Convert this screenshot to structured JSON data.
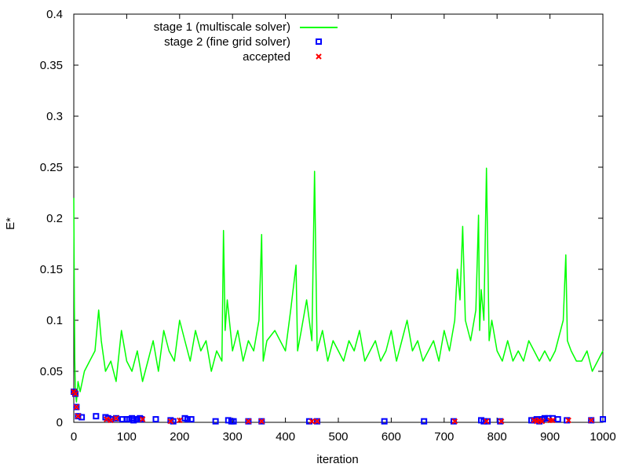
{
  "chart_data": {
    "type": "line",
    "xlabel": "iteration",
    "ylabel": "E*",
    "xlim": [
      0,
      1000
    ],
    "ylim": [
      0,
      0.4
    ],
    "x_ticks": [
      0,
      100,
      200,
      300,
      400,
      500,
      600,
      700,
      800,
      900,
      1000
    ],
    "y_ticks": [
      0,
      0.05,
      0.1,
      0.15,
      0.2,
      0.25,
      0.3,
      0.35,
      0.4
    ],
    "x_tick_labels": [
      "0",
      "100",
      "200",
      "300",
      "400",
      "500",
      "600",
      "700",
      "800",
      "900",
      "1000"
    ],
    "y_tick_labels": [
      "0",
      "0.05",
      "0.1",
      "0.15",
      "0.2",
      "0.25",
      "0.3",
      "0.35",
      "0.4"
    ],
    "grid": false,
    "legend_position": "top-left",
    "series": [
      {
        "name": "stage 1 (multiscale solver)",
        "kind": "line",
        "color": "#00ff00",
        "x": [
          0,
          1,
          2,
          3,
          5,
          8,
          12,
          20,
          30,
          40,
          47,
          52,
          60,
          70,
          80,
          90,
          100,
          110,
          120,
          130,
          140,
          150,
          160,
          170,
          180,
          190,
          200,
          210,
          220,
          230,
          240,
          250,
          260,
          270,
          280,
          283,
          286,
          290,
          300,
          310,
          320,
          330,
          340,
          350,
          355,
          358,
          365,
          380,
          400,
          410,
          420,
          423,
          430,
          440,
          450,
          455,
          460,
          470,
          480,
          490,
          500,
          510,
          520,
          530,
          540,
          550,
          560,
          570,
          580,
          590,
          600,
          610,
          620,
          630,
          640,
          650,
          660,
          670,
          680,
          690,
          700,
          710,
          720,
          725,
          730,
          735,
          740,
          750,
          760,
          765,
          767,
          770,
          775,
          780,
          785,
          790,
          800,
          810,
          820,
          830,
          840,
          850,
          860,
          870,
          880,
          890,
          900,
          910,
          920,
          925,
          930,
          933,
          940,
          950,
          960,
          970,
          980,
          990,
          1000
        ],
        "y": [
          0.22,
          0.12,
          0.06,
          0.03,
          0.02,
          0.04,
          0.03,
          0.05,
          0.06,
          0.07,
          0.11,
          0.08,
          0.05,
          0.06,
          0.04,
          0.09,
          0.06,
          0.05,
          0.07,
          0.04,
          0.06,
          0.08,
          0.05,
          0.09,
          0.07,
          0.06,
          0.1,
          0.08,
          0.06,
          0.09,
          0.07,
          0.08,
          0.05,
          0.07,
          0.06,
          0.188,
          0.09,
          0.12,
          0.07,
          0.09,
          0.06,
          0.08,
          0.07,
          0.1,
          0.184,
          0.06,
          0.08,
          0.09,
          0.07,
          0.11,
          0.154,
          0.07,
          0.09,
          0.12,
          0.08,
          0.246,
          0.07,
          0.09,
          0.06,
          0.08,
          0.07,
          0.06,
          0.08,
          0.07,
          0.09,
          0.06,
          0.07,
          0.08,
          0.06,
          0.07,
          0.09,
          0.06,
          0.08,
          0.1,
          0.07,
          0.08,
          0.06,
          0.07,
          0.08,
          0.06,
          0.09,
          0.07,
          0.1,
          0.15,
          0.12,
          0.192,
          0.1,
          0.08,
          0.11,
          0.203,
          0.09,
          0.13,
          0.1,
          0.249,
          0.08,
          0.1,
          0.07,
          0.06,
          0.08,
          0.06,
          0.07,
          0.06,
          0.08,
          0.07,
          0.06,
          0.07,
          0.06,
          0.07,
          0.09,
          0.1,
          0.164,
          0.08,
          0.07,
          0.06,
          0.06,
          0.07,
          0.05,
          0.06,
          0.07
        ]
      },
      {
        "name": "stage 2 (fine grid solver)",
        "kind": "points",
        "marker": "square",
        "color": "#0000ff",
        "x": [
          0,
          3,
          5,
          8,
          15,
          42,
          60,
          65,
          70,
          80,
          92,
          100,
          105,
          110,
          113,
          118,
          120,
          125,
          128,
          155,
          183,
          188,
          210,
          215,
          222,
          268,
          292,
          298,
          302,
          330,
          355,
          445,
          460,
          587,
          662,
          718,
          770,
          775,
          782,
          806,
          865,
          870,
          875,
          880,
          885,
          890,
          897,
          905,
          915,
          932,
          978,
          1000
        ],
        "y": [
          0.03,
          0.028,
          0.015,
          0.006,
          0.005,
          0.006,
          0.005,
          0.004,
          0.003,
          0.004,
          0.003,
          0.003,
          0.003,
          0.004,
          0.002,
          0.003,
          0.003,
          0.004,
          0.003,
          0.003,
          0.002,
          0.001,
          0.004,
          0.003,
          0.003,
          0.001,
          0.002,
          0.001,
          0.001,
          0.001,
          0.001,
          0.001,
          0.001,
          0.001,
          0.001,
          0.001,
          0.002,
          0.001,
          0.001,
          0.001,
          0.002,
          0.002,
          0.003,
          0.001,
          0.003,
          0.004,
          0.004,
          0.004,
          0.003,
          0.002,
          0.002,
          0.003
        ]
      },
      {
        "name": "accepted",
        "kind": "points",
        "marker": "cross",
        "color": "#ff0000",
        "x": [
          0,
          3,
          5,
          8,
          62,
          70,
          80,
          130,
          183,
          200,
          330,
          355,
          450,
          460,
          720,
          780,
          808,
          870,
          875,
          880,
          885,
          900,
          905,
          935,
          978
        ],
        "y": [
          0.03,
          0.028,
          0.015,
          0.006,
          0.003,
          0.002,
          0.004,
          0.003,
          0.001,
          0.002,
          0.001,
          0.001,
          0.001,
          0.001,
          0.001,
          0.001,
          0.001,
          0.002,
          0.001,
          0.002,
          0.001,
          0.002,
          0.002,
          0.002,
          0.002
        ]
      }
    ]
  }
}
